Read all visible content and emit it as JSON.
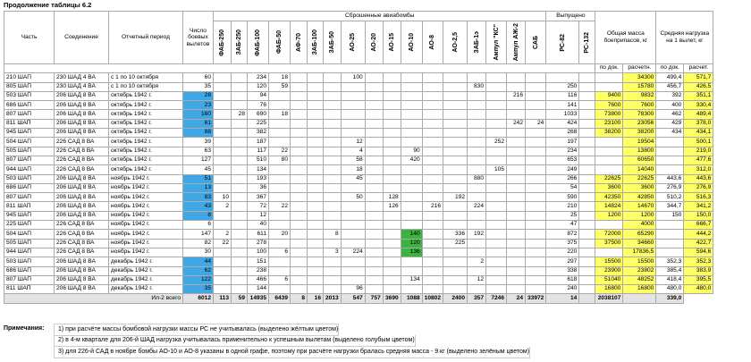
{
  "title": "Продолжение таблицы 6.2",
  "headers": {
    "unit": "Часть",
    "formation": "Соединение",
    "period": "Отчетный период",
    "sorties": "Число боевых вылетов",
    "bombs_group": "Сброшенные авиабомбы",
    "bombs": [
      "ФАБ-250",
      "ЗАБ-250",
      "ФАБ-100",
      "ФАБ-50",
      "АФ-70",
      "ЗАБ-100",
      "ЗАБ-50",
      "АО-25",
      "АО-20",
      "АО-15",
      "АО-10",
      "АО-8",
      "АО-2,5",
      "ЗАБ-1э",
      "Ампул \"КС\"",
      "Ампул АЖ-2",
      "САБ"
    ],
    "fired_group": "Выпущено",
    "fired": [
      "РС-82",
      "РС-132"
    ],
    "mass_group": "Общая масса боеприпасов, кг",
    "mass_sub": [
      "по док.",
      "расчетн."
    ],
    "load_group": "Средняя нагрузка на 1 вылет, кг",
    "load_sub": [
      "по док.",
      "расчет."
    ]
  },
  "rows": [
    {
      "cells": [
        "210 ШАП",
        "230 ШАД 4 ВА",
        "с 1 по 10 октября",
        "60",
        "",
        "",
        "234",
        "18",
        "",
        "",
        "",
        "100",
        "",
        "",
        "",
        "",
        "",
        "",
        "",
        "",
        "",
        "",
        "",
        "",
        "34300",
        "499,4",
        "571,7"
      ],
      "colors": {
        "24": "yellow",
        "26": "yellow"
      }
    },
    {
      "cells": [
        "805 ШАП",
        "230 ШАД 4 ВА",
        "с 1 по 10 октября",
        "35",
        "",
        "",
        "120",
        "59",
        "",
        "",
        "",
        "",
        "",
        "",
        "",
        "",
        "",
        "830",
        "",
        "",
        "",
        "250",
        "",
        "",
        "15780",
        "456,7",
        "426,5"
      ],
      "colors": {
        "24": "yellow",
        "26": "yellow"
      }
    },
    {
      "cells": [
        "503 ШАП",
        "206 ШАД 8 ВА",
        "октябрь 1942 г.",
        "28",
        "",
        "",
        "94",
        "",
        "",
        "",
        "",
        "",
        "",
        "",
        "",
        "",
        "",
        "",
        "",
        "216",
        "",
        "116",
        "",
        "9400",
        "9832",
        "392",
        "351,1"
      ],
      "colors": {
        "3": "blue",
        "23": "yellow",
        "24": "yellow",
        "26": "yellow"
      }
    },
    {
      "cells": [
        "686 ШАП",
        "206 ШАД 8 ВА",
        "октябрь 1942 г.",
        "23",
        "",
        "",
        "76",
        "",
        "",
        "",
        "",
        "",
        "",
        "",
        "",
        "",
        "",
        "",
        "",
        "",
        "",
        "141",
        "",
        "7600",
        "7600",
        "400",
        "330,4"
      ],
      "colors": {
        "3": "blue",
        "23": "yellow",
        "24": "yellow",
        "26": "yellow"
      }
    },
    {
      "cells": [
        "807 ШАП",
        "206 ШАД 8 ВА",
        "октябрь 1942 г.",
        "160",
        "",
        "28",
        "690",
        "18",
        "",
        "",
        "",
        "",
        "",
        "",
        "",
        "",
        "",
        "",
        "",
        "",
        "",
        "1033",
        "",
        "73800",
        "78300",
        "462",
        "489,4"
      ],
      "colors": {
        "3": "blue",
        "23": "yellow",
        "24": "yellow",
        "26": "yellow"
      }
    },
    {
      "cells": [
        "811 ШАП",
        "206 ШАД 8 ВА",
        "октябрь 1942 г.",
        "61",
        "",
        "",
        "225",
        "",
        "",
        "",
        "",
        "",
        "",
        "",
        "",
        "",
        "",
        "",
        "",
        "242",
        "24",
        "424",
        "",
        "23100",
        "23056",
        "429",
        "378,0"
      ],
      "colors": {
        "3": "blue",
        "23": "yellow",
        "24": "yellow",
        "26": "yellow"
      }
    },
    {
      "cells": [
        "945 ШАП",
        "206 ШАД 8 ВА",
        "октябрь 1942 г.",
        "88",
        "",
        "",
        "382",
        "",
        "",
        "",
        "",
        "",
        "",
        "",
        "",
        "",
        "",
        "",
        "",
        "",
        "",
        "268",
        "",
        "38200",
        "38200",
        "434",
        "434,1"
      ],
      "colors": {
        "3": "blue",
        "23": "yellow",
        "24": "yellow",
        "26": "yellow"
      }
    },
    {
      "cells": [
        "504 ШАП",
        "226 САД 8 ВА",
        "октябрь 1942 г.",
        "39",
        "",
        "",
        "187",
        "",
        "",
        "",
        "",
        "12",
        "",
        "",
        "",
        "",
        "",
        "",
        "252",
        "",
        "",
        "197",
        "",
        "",
        "19504",
        "",
        "500,1"
      ],
      "colors": {
        "24": "yellow",
        "26": "yellow"
      }
    },
    {
      "cells": [
        "505 ШАП",
        "226 САД 8 ВА",
        "октябрь 1942 г.",
        "63",
        "",
        "",
        "117",
        "22",
        "",
        "",
        "",
        "4",
        "",
        "",
        "90",
        "",
        "",
        "",
        "",
        "",
        "",
        "234",
        "",
        "",
        "13800",
        "",
        "219,0"
      ],
      "colors": {
        "24": "yellow",
        "26": "yellow"
      }
    },
    {
      "cells": [
        "807 ШАП",
        "226 САД 8 ВА",
        "октябрь 1942 г.",
        "127",
        "",
        "",
        "510",
        "80",
        "",
        "",
        "",
        "58",
        "",
        "",
        "420",
        "",
        "",
        "",
        "",
        "",
        "",
        "653",
        "",
        "",
        "60650",
        "",
        "477,6"
      ],
      "colors": {
        "24": "yellow",
        "26": "yellow"
      }
    },
    {
      "cells": [
        "944 ШАП",
        "226 САД 8 ВА",
        "октябрь 1942 г.",
        "45",
        "",
        "",
        "134",
        "",
        "",
        "",
        "",
        "18",
        "",
        "",
        "",
        "",
        "",
        "",
        "105",
        "",
        "",
        "249",
        "",
        "",
        "14040",
        "",
        "312,0"
      ],
      "colors": {
        "24": "yellow",
        "26": "yellow"
      }
    },
    {
      "cells": [
        "503 ШАП",
        "206 ШАД 8 ВА",
        "ноябрь 1942 г.",
        "51",
        "",
        "",
        "193",
        "",
        "",
        "",
        "",
        "45",
        "",
        "",
        "",
        "",
        "",
        "880",
        "",
        "",
        "",
        "266",
        "",
        "22625",
        "22625",
        "443,6",
        "443,6"
      ],
      "colors": {
        "3": "blue",
        "23": "yellow",
        "24": "yellow",
        "26": "yellow"
      }
    },
    {
      "cells": [
        "686 ШАП",
        "206 ШАД 8 ВА",
        "ноябрь 1942 г.",
        "13",
        "",
        "",
        "36",
        "",
        "",
        "",
        "",
        "",
        "",
        "",
        "",
        "",
        "",
        "",
        "",
        "",
        "",
        "54",
        "",
        "3600",
        "3600",
        "276,9",
        "276,9"
      ],
      "colors": {
        "3": "blue",
        "23": "yellow",
        "24": "yellow",
        "26": "yellow"
      }
    },
    {
      "cells": [
        "807 ШАП",
        "206 ШАД 8 ВА",
        "ноябрь 1942 г.",
        "83",
        "10",
        "",
        "367",
        "",
        "",
        "",
        "",
        "50",
        "",
        "128",
        "",
        "",
        "192",
        "",
        "",
        "",
        "",
        "590",
        "",
        "42350",
        "42850",
        "510,2",
        "516,3"
      ],
      "colors": {
        "3": "blue",
        "23": "yellow",
        "24": "yellow",
        "26": "yellow"
      }
    },
    {
      "cells": [
        "811 ШАП",
        "206 ШАД 8 ВА",
        "ноябрь 1942 г.",
        "43",
        "2",
        "",
        "72",
        "22",
        "",
        "",
        "",
        "",
        "",
        "126",
        "",
        "216",
        "",
        "224",
        "",
        "",
        "",
        "210",
        "",
        "14824",
        "14670",
        "344,7",
        "341,2"
      ],
      "colors": {
        "3": "blue",
        "23": "yellow",
        "24": "yellow",
        "26": "yellow"
      }
    },
    {
      "cells": [
        "945 ШАП",
        "206 ШАД 8 ВА",
        "ноябрь 1942 г.",
        "8",
        "",
        "",
        "12",
        "",
        "",
        "",
        "",
        "",
        "",
        "",
        "",
        "",
        "",
        "",
        "",
        "",
        "",
        "25",
        "",
        "1200",
        "1200",
        "150",
        "150,0"
      ],
      "colors": {
        "3": "blue",
        "23": "yellow",
        "24": "yellow",
        "26": "yellow"
      }
    },
    {
      "cells": [
        "225 ШАП",
        "226 САД 8 ВА",
        "ноябрь 1942 г.",
        "6",
        "",
        "",
        "40",
        "",
        "",
        "",
        "",
        "",
        "",
        "",
        "",
        "",
        "",
        "",
        "",
        "",
        "",
        "47",
        "",
        "",
        "4000",
        "",
        "666,7"
      ],
      "colors": {
        "24": "yellow",
        "26": "yellow"
      }
    },
    {
      "cells": [
        "504 ШАП",
        "226 САД 8 ВА",
        "ноябрь 1942 г.",
        "147",
        "2",
        "",
        "611",
        "20",
        "",
        "",
        "8",
        "",
        "",
        "",
        "140",
        "",
        "336",
        "192",
        "",
        "",
        "",
        "872",
        "",
        "72000",
        "65290",
        "",
        "444,2"
      ],
      "colors": {
        "14": "green",
        "23": "yellow",
        "24": "yellow",
        "26": "yellow"
      }
    },
    {
      "cells": [
        "505 ШАП",
        "226 САД 8 ВА",
        "ноябрь 1942 г.",
        "82",
        "22",
        "",
        "278",
        "",
        "",
        "",
        "",
        "",
        "",
        "",
        "120",
        "",
        "225",
        "",
        "",
        "",
        "",
        "375",
        "",
        "37500",
        "34660",
        "",
        "422,7"
      ],
      "colors": {
        "14": "green",
        "23": "yellow",
        "24": "yellow",
        "26": "yellow"
      }
    },
    {
      "cells": [
        "944 ШАП",
        "226 САД 8 ВА",
        "ноябрь 1942 г.",
        "30",
        "",
        "",
        "100",
        "6",
        "",
        "",
        "3",
        "224",
        "",
        "",
        "136",
        "",
        "",
        "",
        "",
        "",
        "",
        "220",
        "",
        "",
        "17836,5",
        "",
        "594,6"
      ],
      "colors": {
        "14": "green",
        "24": "yellow",
        "26": "yellow"
      }
    },
    {
      "cells": [
        "503 ШАП",
        "206 ШАД 8 ВА",
        "декабрь 1942 г.",
        "44",
        "",
        "",
        "151",
        "",
        "",
        "",
        "",
        "",
        "",
        "",
        "",
        "",
        "",
        "2",
        "",
        "",
        "",
        "297",
        "",
        "15500",
        "15500",
        "352,3",
        "352,3"
      ],
      "colors": {
        "3": "blue",
        "23": "yellow",
        "24": "yellow",
        "26": "yellow"
      }
    },
    {
      "cells": [
        "686 ШАП",
        "206 ШАД 8 ВА",
        "декабрь 1942 г.",
        "62",
        "",
        "",
        "238",
        "",
        "",
        "",
        "",
        "",
        "",
        "",
        "",
        "",
        "",
        "",
        "",
        "",
        "",
        "338",
        "",
        "23900",
        "23802",
        "385,4",
        "383,9"
      ],
      "colors": {
        "3": "blue",
        "23": "yellow",
        "24": "yellow",
        "26": "yellow"
      }
    },
    {
      "cells": [
        "807 ШАП",
        "206 ШАД 8 ВА",
        "декабрь 1942 г.",
        "122",
        "",
        "",
        "466",
        "6",
        "",
        "",
        "",
        "",
        "",
        "",
        "134",
        "",
        "",
        "12",
        "",
        "",
        "",
        "618",
        "",
        "51040",
        "48252",
        "418,4",
        "395,5"
      ],
      "colors": {
        "3": "blue",
        "23": "yellow",
        "24": "yellow",
        "26": "yellow"
      }
    },
    {
      "cells": [
        "811 ШАП",
        "206 ШАД 8 ВА",
        "декабрь 1942 г.",
        "35",
        "",
        "",
        "144",
        "",
        "",
        "",
        "",
        "96",
        "",
        "",
        "",
        "",
        "",
        "",
        "",
        "",
        "",
        "240",
        "",
        "16800",
        "16800",
        "480,0",
        "480,0"
      ],
      "colors": {
        "3": "blue",
        "23": "yellow",
        "24": "yellow",
        "26": "yellow"
      }
    }
  ],
  "total": {
    "label": "Ил-2 всего",
    "cells": [
      "6012",
      "113",
      "59",
      "14935",
      "6439",
      "8",
      "16",
      "2013",
      "547",
      "757",
      "3690",
      "1088",
      "10802",
      "2400",
      "357",
      "7246",
      "24",
      "33972",
      "14",
      "",
      "2038107",
      "",
      "339,0"
    ]
  },
  "notes": {
    "label": "Примечания:",
    "items": [
      "1) при расчёте массы бомбовой нагрузки массы РС не учитывалась (выделено жёлтым цветом)",
      "2) в 4-м квартале для 206-й ШАД нагрузка учитывалась применительно к успешным вылетам (выделено голубым цветом)",
      "3) для 226-й САД в ноябре бомбы АО-10 и АО-8 указаны в одной графе, поэтому при расчёте нагрузки бралась средняя масса - 9 кг (выделено зелёным цветом)"
    ]
  },
  "colors": {
    "yellow": "#ffff66",
    "blue": "#3fa7e6",
    "green": "#3db33f"
  }
}
